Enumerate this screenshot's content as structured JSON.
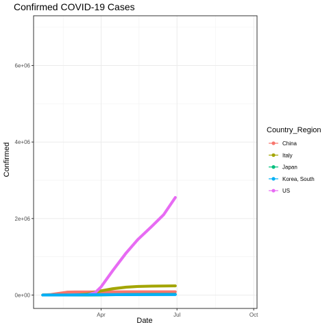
{
  "chart_data": {
    "type": "line",
    "title": "Confirmed COVID-19 Cases",
    "xlabel": "Date",
    "ylabel": "Confirmed",
    "x_ticks": [
      {
        "label": "Apr",
        "date": "2020-04-01"
      },
      {
        "label": "Jul",
        "date": "2020-07-01"
      },
      {
        "label": "Oct",
        "date": "2020-10-01"
      }
    ],
    "xlim": [
      "2020-01-11",
      "2020-10-05"
    ],
    "y_ticks": [
      {
        "label": "0e+00",
        "value": 0
      },
      {
        "label": "2e+06",
        "value": 2000000
      },
      {
        "label": "4e+06",
        "value": 4000000
      },
      {
        "label": "6e+06",
        "value": 6000000
      }
    ],
    "ylim": [
      -350000,
      7300000
    ],
    "grid": true,
    "legend": {
      "title": "Country_Region",
      "position": "right"
    },
    "series": [
      {
        "name": "China",
        "color": "#F8766D",
        "points": [
          [
            "2020-01-22",
            548
          ],
          [
            "2020-02-01",
            14000
          ],
          [
            "2020-02-10",
            42000
          ],
          [
            "2020-02-20",
            75000
          ],
          [
            "2020-03-01",
            80000
          ],
          [
            "2020-03-15",
            81000
          ],
          [
            "2020-04-01",
            82000
          ],
          [
            "2020-05-01",
            84000
          ],
          [
            "2020-06-01",
            84100
          ],
          [
            "2020-06-29",
            84700
          ]
        ]
      },
      {
        "name": "Italy",
        "color": "#A3A500",
        "points": [
          [
            "2020-01-22",
            0
          ],
          [
            "2020-02-20",
            3
          ],
          [
            "2020-03-01",
            1700
          ],
          [
            "2020-03-15",
            25000
          ],
          [
            "2020-04-01",
            110000
          ],
          [
            "2020-04-15",
            165000
          ],
          [
            "2020-05-01",
            205000
          ],
          [
            "2020-05-15",
            224000
          ],
          [
            "2020-06-01",
            233000
          ],
          [
            "2020-06-29",
            240000
          ]
        ]
      },
      {
        "name": "Japan",
        "color": "#00BF7D",
        "points": [
          [
            "2020-01-22",
            2
          ],
          [
            "2020-03-01",
            250
          ],
          [
            "2020-04-01",
            2400
          ],
          [
            "2020-05-01",
            14000
          ],
          [
            "2020-06-01",
            17000
          ],
          [
            "2020-06-29",
            18500
          ]
        ]
      },
      {
        "name": "Korea, South",
        "color": "#00B0F6",
        "points": [
          [
            "2020-01-22",
            1
          ],
          [
            "2020-02-20",
            100
          ],
          [
            "2020-03-01",
            3700
          ],
          [
            "2020-03-15",
            8100
          ],
          [
            "2020-04-01",
            9900
          ],
          [
            "2020-05-01",
            10800
          ],
          [
            "2020-06-01",
            11500
          ],
          [
            "2020-06-29",
            12800
          ]
        ]
      },
      {
        "name": "US",
        "color": "#E76BF3",
        "points": [
          [
            "2020-01-22",
            1
          ],
          [
            "2020-03-01",
            75
          ],
          [
            "2020-03-15",
            3500
          ],
          [
            "2020-03-25",
            65000
          ],
          [
            "2020-04-01",
            215000
          ],
          [
            "2020-04-15",
            640000
          ],
          [
            "2020-05-01",
            1100000
          ],
          [
            "2020-05-15",
            1450000
          ],
          [
            "2020-06-01",
            1800000
          ],
          [
            "2020-06-15",
            2100000
          ],
          [
            "2020-06-29",
            2550000
          ]
        ]
      }
    ]
  }
}
